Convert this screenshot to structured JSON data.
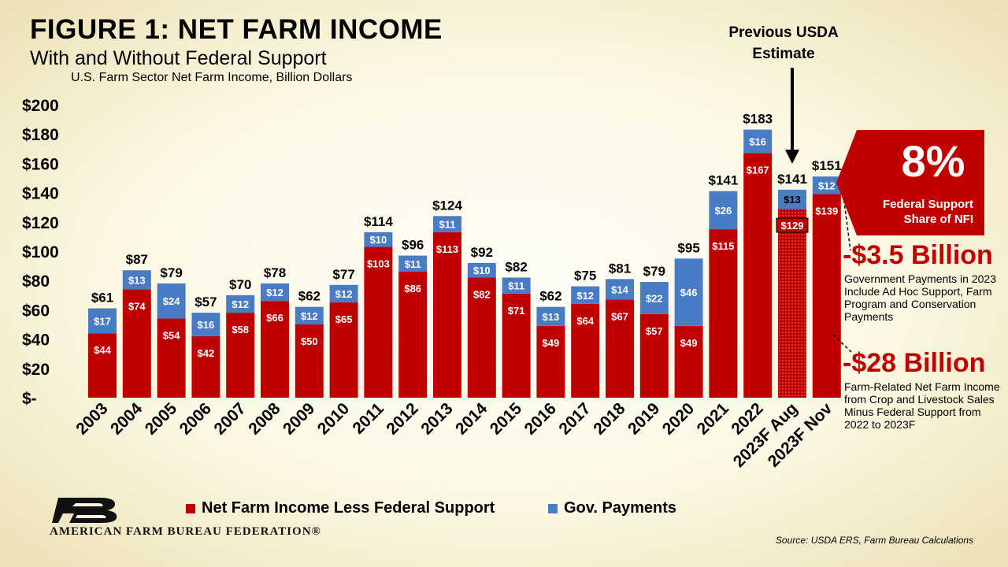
{
  "header": {
    "title": "FIGURE 1: NET FARM INCOME",
    "subtitle": "With and Without Federal Support",
    "subtitle2": "U.S. Farm Sector Net Farm Income, Billion Dollars"
  },
  "colors": {
    "red": "#c00000",
    "blue": "#4a7cc6",
    "callout": "#c00000"
  },
  "annotations": {
    "previous_estimate": "Previous USDA Estimate",
    "share_pct": "8%",
    "share_label": "Federal Support Share of NFI",
    "gov_change": "-$3.5 Billion",
    "gov_change_note": "Government Payments in 2023 Include Ad Hoc Support, Farm Program and Conservation Payments",
    "farm_change": "-$28 Billion",
    "farm_change_note": "Farm-Related Net Farm Income from Crop and Livestock Sales Minus Federal Support from 2022 to 2023F"
  },
  "legend": {
    "red_label": "Net Farm Income Less Federal Support",
    "blue_label": "Gov. Payments"
  },
  "footer": {
    "org": "AMERICAN FARM BUREAU FEDERATION®",
    "source": "Source:  USDA ERS, Farm Bureau Calculations"
  },
  "chart_data": {
    "type": "bar",
    "stacked": true,
    "categories": [
      "2003",
      "2004",
      "2005",
      "2006",
      "2007",
      "2008",
      "2009",
      "2010",
      "2011",
      "2012",
      "2013",
      "2014",
      "2015",
      "2016",
      "2017",
      "2018",
      "2019",
      "2020",
      "2021",
      "2022",
      "2023F Aug",
      "2023F Nov"
    ],
    "series": [
      {
        "name": "Net Farm Income Less Federal Support",
        "color": "#c00000",
        "values": [
          44,
          74,
          54,
          42,
          58,
          66,
          50,
          65,
          103,
          86,
          113,
          82,
          71,
          49,
          64,
          67,
          57,
          49,
          115,
          167,
          129,
          139
        ]
      },
      {
        "name": "Gov. Payments",
        "color": "#4a7cc6",
        "values": [
          17,
          13,
          24,
          16,
          12,
          12,
          12,
          12,
          10,
          11,
          11,
          10,
          11,
          13,
          12,
          14,
          22,
          46,
          26,
          16,
          13,
          12
        ]
      }
    ],
    "totals": [
      61,
      87,
      79,
      57,
      70,
      78,
      62,
      77,
      114,
      96,
      124,
      92,
      82,
      62,
      75,
      81,
      79,
      95,
      141,
      183,
      141,
      151
    ],
    "y_tick_labels": [
      "$-",
      "$20",
      "$40",
      "$60",
      "$80",
      "$100",
      "$120",
      "$140",
      "$160",
      "$180",
      "$200"
    ],
    "ylim": [
      0,
      200
    ],
    "grid": false
  }
}
